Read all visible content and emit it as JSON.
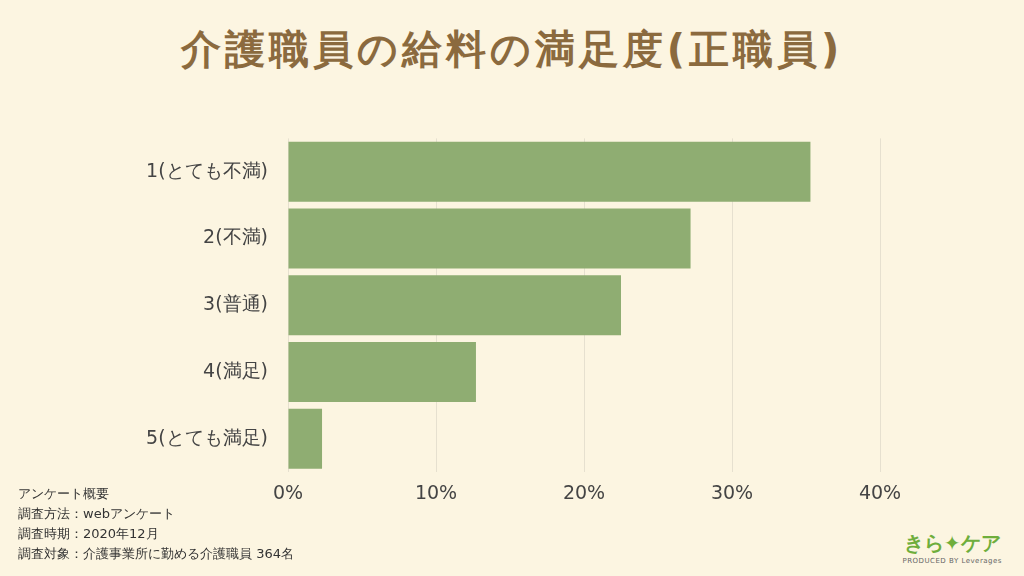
{
  "chart_data": {
    "type": "bar",
    "title": "介護職員の給料の満足度(正職員)",
    "orientation": "horizontal",
    "categories": [
      "1(とても不満)",
      "2(不満)",
      "3(普通)",
      "4(満足)",
      "5(とても満足)"
    ],
    "values": [
      35.3,
      27.2,
      22.5,
      12.7,
      2.3
    ],
    "color": "#8fad72",
    "xlim": [
      0,
      40
    ],
    "xticks": [
      {
        "value": 0,
        "label": "0%"
      },
      {
        "value": 10,
        "label": "10%"
      },
      {
        "value": 20,
        "label": "20%"
      },
      {
        "value": 30,
        "label": "30%"
      },
      {
        "value": 40,
        "label": "40%"
      }
    ],
    "grid": true,
    "annotations": [
      "アンケート概要",
      "調査方法：webアンケート",
      "調査時期：2020年12月",
      "調査対象：介護事業所に勤める介護職員 364名"
    ],
    "brand": "きら✦ケア",
    "brand_sub": "PRODUCED BY Leverages"
  }
}
